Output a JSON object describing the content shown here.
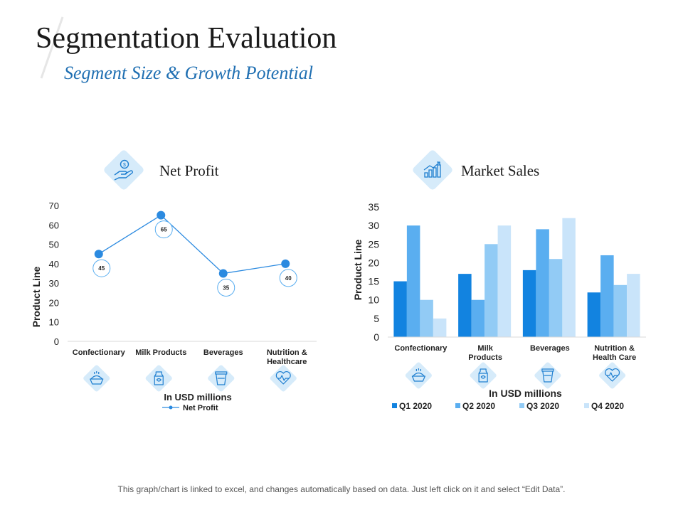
{
  "page": {
    "title": "Segmentation Evaluation",
    "subtitle": "Segment Size & Growth Potential",
    "footnote": "This graph/chart is linked to excel, and changes automatically based on data. Just left click on it and select “Edit Data”."
  },
  "panels": {
    "net_profit": {
      "title": "Net Profit",
      "icon": "hand-money-icon"
    },
    "market_sales": {
      "title": "Market Sales",
      "icon": "growth-chart-icon"
    }
  },
  "colors": {
    "icon_bg": "#d6ebfa",
    "icon_stroke": "#1f7fd0",
    "line": "#2b8ae0",
    "q1": "#1283e0",
    "q2": "#5aaef0",
    "q3": "#92cbf5",
    "q4": "#c9e4fa"
  },
  "category_icons": [
    "pie-icon",
    "milk-carton-icon",
    "coffee-cup-icon",
    "heartbeat-icon"
  ],
  "chart_data": [
    {
      "type": "line",
      "categories": [
        "Confectionary",
        "Milk Products",
        "Beverages",
        "Nutrition & Healthcare"
      ],
      "series": [
        {
          "name": "Net Profit",
          "values": [
            45,
            65,
            35,
            40
          ]
        }
      ],
      "ylim": [
        0,
        70
      ],
      "yticks": [
        0,
        10,
        20,
        30,
        40,
        50,
        60,
        70
      ],
      "ylabel": "Product Line",
      "xlabel": "In USD millions",
      "legend": "bottom"
    },
    {
      "type": "bar",
      "categories": [
        "Confectionary",
        "Milk Products",
        "Beverages",
        "Nutrition & Health Care"
      ],
      "series": [
        {
          "name": "Q1 2020",
          "values": [
            15,
            17,
            18,
            12
          ]
        },
        {
          "name": "Q2 2020",
          "values": [
            30,
            10,
            29,
            22
          ]
        },
        {
          "name": "Q3 2020",
          "values": [
            10,
            25,
            21,
            14
          ]
        },
        {
          "name": "Q4 2020",
          "values": [
            5,
            30,
            32,
            17
          ]
        }
      ],
      "ylim": [
        0,
        35
      ],
      "yticks": [
        0,
        5,
        10,
        15,
        20,
        25,
        30,
        35
      ],
      "ylabel": "Product Line",
      "xlabel": "In USD millions",
      "legend": "bottom"
    }
  ]
}
